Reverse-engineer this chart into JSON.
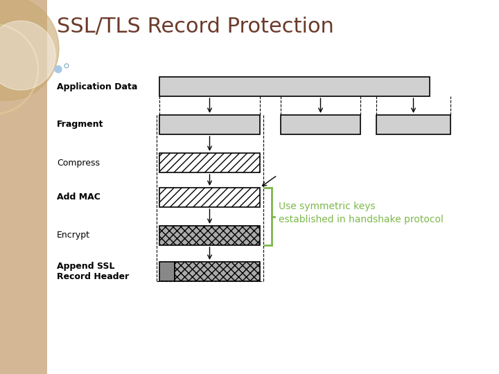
{
  "title": "SSL/TLS Record Protection",
  "title_color": "#6B3A2A",
  "title_fontsize": 22,
  "bg_color": "#FFFFFF",
  "left_panel_color": "#D4B896",
  "annotation_text": "Use symmetric keys\nestablished in handshake protocol",
  "annotation_color": "#7DB84A",
  "labels": [
    "Application Data",
    "Fragment",
    "Compress",
    "Add MAC",
    "Encrypt",
    "Append SSL\nRecord Header"
  ],
  "label_fontsize": 9,
  "label_bold": [
    true,
    true,
    false,
    true,
    false,
    true
  ],
  "gray_light": "#D0D0D0",
  "gray_dark": "#808080",
  "black": "#000000",
  "white": "#FFFFFF",
  "circle1_color": "#C8A870",
  "circle2_color": "#E0C898",
  "blue_dot_color": "#A8C8E8"
}
